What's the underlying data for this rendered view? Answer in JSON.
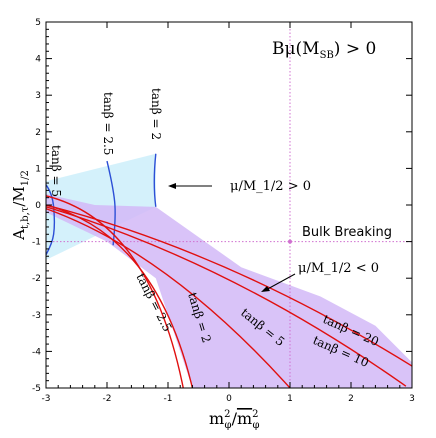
{
  "chart_data": {
    "type": "line",
    "title": "Bμ(M_SB) > 0",
    "xlabel": "m²_φ / m̄²_φ",
    "ylabel": "A_t,b,τ / M_1/2",
    "xlim": [
      -3,
      3
    ],
    "ylim": [
      -5,
      5
    ],
    "x_ticks": [
      "-3",
      "-2",
      "-1",
      "0",
      "1",
      "2",
      "3"
    ],
    "y_ticks": [
      "5",
      "4",
      "3",
      "2",
      "1",
      "0",
      "-1",
      "-2",
      "-3",
      "-4",
      "-5"
    ],
    "reference_lines": {
      "x": 1,
      "y": -1
    },
    "regions": [
      {
        "name": "μ/M_1/2 > 0",
        "color": "#cdeefa",
        "polygon": [
          [
            -3,
            0.65
          ],
          [
            -1.2,
            1.4
          ],
          [
            -1.2,
            -0.05
          ],
          [
            -3,
            -1.5
          ]
        ]
      },
      {
        "name": "μ/M_1/2 < 0",
        "color": "#d2b8f7",
        "polygon": [
          [
            -3,
            0.3
          ],
          [
            -2.2,
            0
          ],
          [
            -1.2,
            -0.05
          ],
          [
            0.2,
            -1.7
          ],
          [
            1.5,
            -2.5
          ],
          [
            2.4,
            -3.3
          ],
          [
            3,
            -4.3
          ],
          [
            3,
            -5
          ],
          [
            -0.6,
            -5
          ],
          [
            -1.2,
            -2
          ],
          [
            -2.0,
            -1.0
          ],
          [
            -3,
            -0.2
          ]
        ]
      }
    ],
    "series": [
      {
        "name": "tanβ = 5",
        "color": "#2c4fd6",
        "x": [
          -3.05,
          -2.9,
          -2.85,
          -2.9,
          -3.05
        ],
        "y": [
          0.65,
          0.4,
          -0.5,
          -1.1,
          -1.5
        ]
      },
      {
        "name": "tanβ = 2.5",
        "color": "#2c4fd6",
        "x": [
          -2.0,
          -1.9,
          -1.85,
          -1.9
        ],
        "y": [
          1.2,
          0.5,
          -0.3,
          -1.1
        ]
      },
      {
        "name": "tanβ = 2",
        "color": "#2c4fd6",
        "x": [
          -1.2,
          -1.25,
          -1.2
        ],
        "y": [
          1.4,
          0.6,
          -0.05
        ]
      },
      {
        "name": "tanβ = 2",
        "color": "#e01010",
        "x": [
          -3.0,
          -1.3,
          -0.75
        ],
        "y": [
          0.25,
          -0.45,
          -5
        ]
      },
      {
        "name": "tanβ = 2.5",
        "color": "#e01010",
        "x": [
          -3.0,
          -1.2,
          -0.6
        ],
        "y": [
          0.0,
          -0.8,
          -5
        ]
      },
      {
        "name": "tanβ = 5",
        "color": "#e01010",
        "x": [
          -3.0,
          -1.0,
          1.0
        ],
        "y": [
          -0.1,
          -1.3,
          -5
        ]
      },
      {
        "name": "tanβ = 10",
        "color": "#e01010",
        "x": [
          -3.0,
          0.0,
          2.9
        ],
        "y": [
          -0.05,
          -1.55,
          -4.95
        ]
      },
      {
        "name": "tanβ = 20",
        "color": "#e01010",
        "x": [
          -3.0,
          0.0,
          3.0
        ],
        "y": [
          0.0,
          -1.3,
          -4.4
        ]
      }
    ],
    "annotations": [
      {
        "text": "tanβ = 5"
      },
      {
        "text": "tanβ = 2.5"
      },
      {
        "text": "tanβ = 2"
      },
      {
        "text": "μ/M_1/2 > 0"
      },
      {
        "text": "Bulk Breaking"
      },
      {
        "text": "μ/M_1/2 < 0"
      },
      {
        "text": "tanβ = 2.5"
      },
      {
        "text": "tanβ = 2"
      },
      {
        "text": "tanβ = 5"
      },
      {
        "text": "tanβ = 20"
      },
      {
        "text": "tanβ = 10"
      }
    ]
  }
}
